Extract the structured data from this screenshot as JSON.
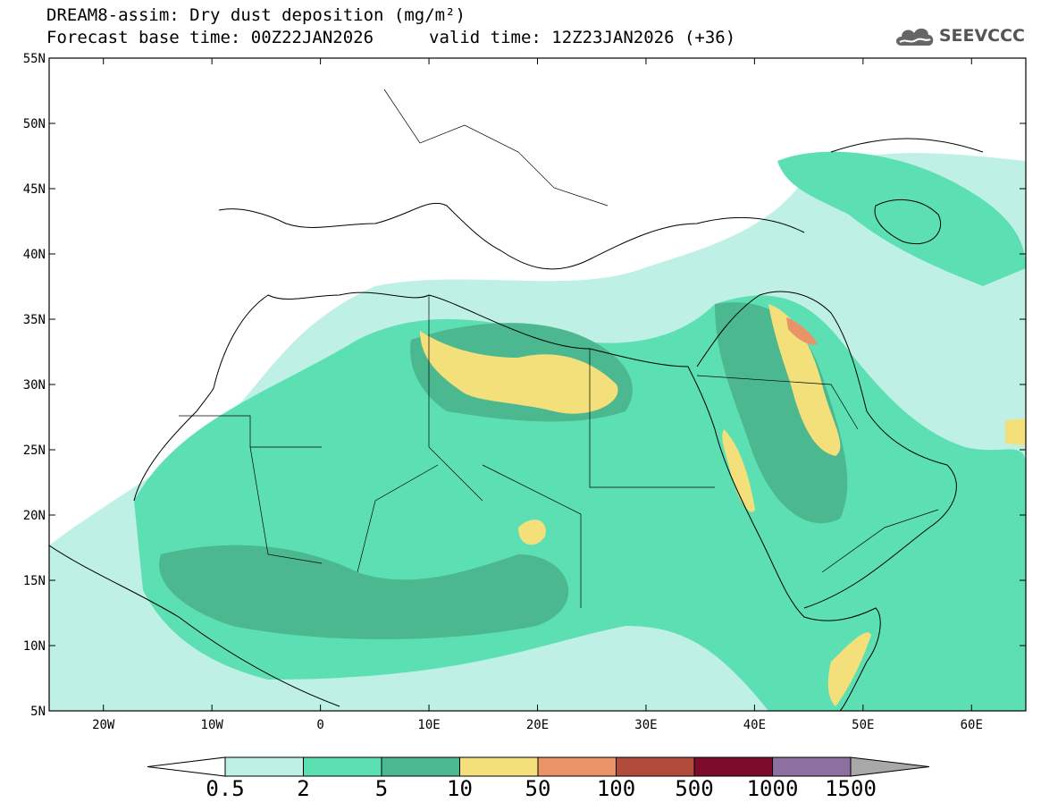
{
  "header": {
    "title_line1": "DREAM8-assim: Dry dust deposition (mg/m²)",
    "title_line2": "Forecast base time: 00Z22JAN2026",
    "valid_time": "valid time: 12Z23JAN2026 (+36)",
    "logo_text": "SEEVCCC",
    "logo_icon": "cloud-icon"
  },
  "map": {
    "lat_labels": [
      "55N",
      "50N",
      "45N",
      "40N",
      "35N",
      "30N",
      "25N",
      "20N",
      "15N",
      "10N",
      "5N"
    ],
    "lat_values": [
      55,
      50,
      45,
      40,
      35,
      30,
      25,
      20,
      15,
      10,
      5
    ],
    "lon_labels": [
      "20W",
      "10W",
      "0",
      "10E",
      "20E",
      "30E",
      "40E",
      "50E",
      "60E"
    ],
    "lon_values": [
      -20,
      -10,
      0,
      10,
      20,
      30,
      40,
      50,
      60
    ],
    "lon_range": [
      -25,
      65
    ],
    "lat_range": [
      5,
      55
    ]
  },
  "colorbar": {
    "labels": [
      "0.5",
      "2",
      "5",
      "10",
      "50",
      "100",
      "500",
      "1000",
      "1500"
    ],
    "colors": [
      "#bff0e6",
      "#5ddfb4",
      "#4cb890",
      "#f3e07a",
      "#e99468",
      "#b14c3d",
      "#7d0b2c",
      "#8d6fa0",
      "#a8a8a8"
    ]
  }
}
